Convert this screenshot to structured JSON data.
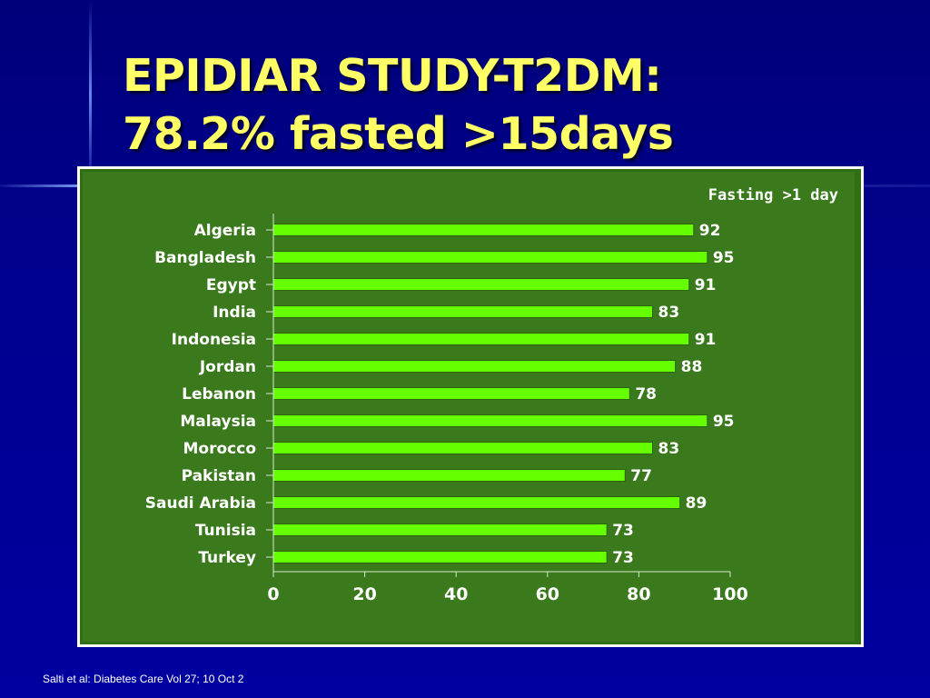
{
  "slide": {
    "title_line1": "EPIDIAR STUDY-T2DM:",
    "title_line2": "78.2% fasted >15days",
    "citation": "Salti et al: Diabetes Care Vol 27; 10 Oct 2"
  },
  "colors": {
    "background": "#00008b",
    "title": "#ffff66",
    "chart_panel": "#3a7a1c",
    "bar": "#66ff00",
    "chart_text": "#ffffff"
  },
  "chart_data": {
    "type": "bar",
    "orientation": "horizontal",
    "title": "Fasting >1 day",
    "categories": [
      "Algeria",
      "Bangladesh",
      "Egypt",
      "India",
      "Indonesia",
      "Jordan",
      "Lebanon",
      "Malaysia",
      "Morocco",
      "Pakistan",
      "Saudi Arabia",
      "Tunisia",
      "Turkey"
    ],
    "values": [
      92,
      95,
      91,
      83,
      91,
      88,
      78,
      95,
      83,
      77,
      89,
      73,
      73
    ],
    "xlim": [
      0,
      100
    ],
    "xticks": [
      0,
      20,
      40,
      60,
      80,
      100
    ],
    "xlabel": "",
    "ylabel": "",
    "grid": false,
    "legend": "none"
  }
}
